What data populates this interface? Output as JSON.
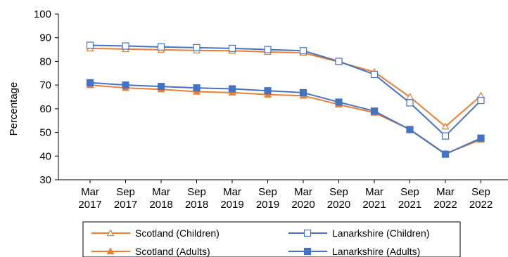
{
  "chart_data": {
    "type": "line",
    "title": "",
    "xlabel": "",
    "ylabel": "Percentage",
    "ylim": [
      30,
      100
    ],
    "yticks": [
      30,
      40,
      50,
      60,
      70,
      80,
      90,
      100
    ],
    "grid": false,
    "legend_position": "bottom",
    "categories": [
      [
        "Mar",
        "2017"
      ],
      [
        "Sep",
        "2017"
      ],
      [
        "Mar",
        "2018"
      ],
      [
        "Sep",
        "2018"
      ],
      [
        "Mar",
        "2019"
      ],
      [
        "Sep",
        "2019"
      ],
      [
        "Mar",
        "2020"
      ],
      [
        "Sep",
        "2020"
      ],
      [
        "Mar",
        "2021"
      ],
      [
        "Sep",
        "2021"
      ],
      [
        "Mar",
        "2022"
      ],
      [
        "Sep",
        "2022"
      ]
    ],
    "series": [
      {
        "name": "Scotland (Children)",
        "color": "#ED7D31",
        "marker": "triangle-open",
        "values": [
          85.5,
          85.2,
          84.9,
          84.6,
          84.5,
          84.0,
          83.6,
          79.8,
          75.5,
          65.0,
          52.5,
          65.5
        ]
      },
      {
        "name": "Lanarkshire (Children)",
        "color": "#4472C4",
        "marker": "square-open",
        "values": [
          86.8,
          86.5,
          86.1,
          85.8,
          85.5,
          85.0,
          84.5,
          80.0,
          74.5,
          62.5,
          48.5,
          63.5
        ]
      },
      {
        "name": "Scotland (Adults)",
        "color": "#ED7D31",
        "marker": "triangle-filled",
        "values": [
          70.0,
          68.8,
          68.2,
          67.2,
          66.8,
          66.0,
          65.5,
          61.8,
          58.3,
          51.3,
          41.0,
          47.0
        ]
      },
      {
        "name": "Lanarkshire (Adults)",
        "color": "#4472C4",
        "marker": "square-filled",
        "values": [
          71.0,
          70.0,
          69.4,
          68.8,
          68.4,
          67.6,
          66.8,
          62.8,
          59.0,
          51.2,
          40.8,
          47.6
        ]
      }
    ]
  }
}
